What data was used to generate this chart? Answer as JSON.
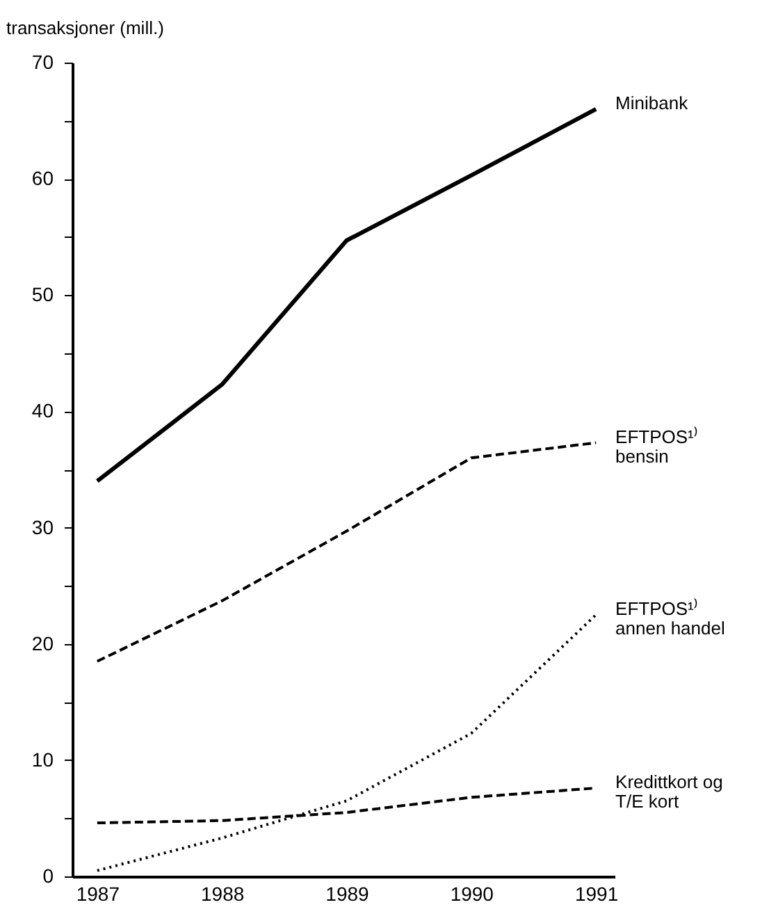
{
  "chart_data": {
    "type": "line",
    "ylabel": "transaksjoner (mill.)",
    "x": [
      1987,
      1988,
      1989,
      1990,
      1991
    ],
    "xlim": [
      1986.8,
      1991.15
    ],
    "xticks": [
      1987,
      1988,
      1989,
      1990,
      1991
    ],
    "ylim": [
      0,
      70
    ],
    "yticks": [
      0,
      {
        "value": 5,
        "label": null
      },
      10,
      {
        "value": 15,
        "label": null
      },
      20,
      {
        "value": 25,
        "label": null
      },
      30,
      {
        "value": 35,
        "label": null
      },
      40,
      {
        "value": 45,
        "label": null
      },
      50,
      {
        "value": 55,
        "label": null
      },
      60,
      {
        "value": 65,
        "label": null
      },
      70
    ],
    "grid": false,
    "marker": "none",
    "series": [
      {
        "name": "Minibank",
        "color": "#000000",
        "line_style": "solid",
        "values": [
          34,
          42.3,
          54.7,
          60.3,
          66
        ]
      },
      {
        "name": "EFTPOS¹⁾\nbensin",
        "color": "#000000",
        "line_style": "dashed",
        "values": [
          18.5,
          23.7,
          29.7,
          36,
          37.3
        ]
      },
      {
        "name": "EFTPOS¹⁾\nannen handel",
        "color": "#000000",
        "line_style": "dotted",
        "values": [
          0.5,
          3.3,
          6.5,
          12.3,
          22.5
        ]
      },
      {
        "name": "Kredittkort og\nT/E kort",
        "color": "#000000",
        "line_style": "dashed",
        "values": [
          4.6,
          4.8,
          5.5,
          6.8,
          7.6
        ]
      }
    ]
  }
}
